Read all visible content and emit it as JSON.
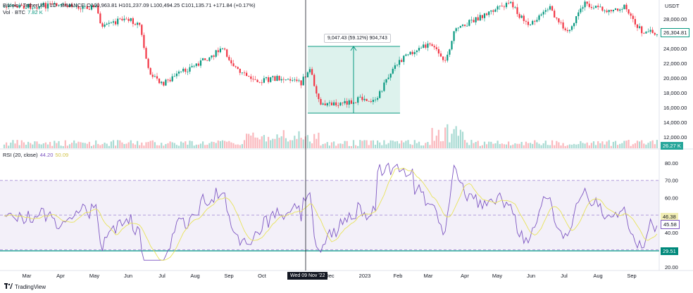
{
  "legend": {
    "symbol": "Bitcoin / TetherUS · 1D · BINANCE",
    "ohlc": "O100,963.81 H101,237.09 L100,494.25 C101,135.71 +171.84 (+0.17%)",
    "vol_label": "Vol · BTC",
    "vol_value": "7.82 K"
  },
  "rsi_legend": {
    "label": "RSI (20, close)",
    "value1": "44.20",
    "value2": "50.09"
  },
  "price_axis": {
    "currency": "USDT",
    "ticks": [
      "28,000.00",
      "26,000.00",
      "24,000.00",
      "22,000.00",
      "20,000.00",
      "18,000.00",
      "16,000.00",
      "14,000.00",
      "12,000.00"
    ],
    "current_price": "26,304.81",
    "volume_badge": "26.27 K"
  },
  "rsi_axis": {
    "ticks": [
      "80.00",
      "70.00",
      "60.00",
      "50.00",
      "40.00",
      "30.00",
      "20.00"
    ],
    "badge_ma": "46.38",
    "badge_rsi": "45.58",
    "badge_level": "29.51"
  },
  "time_axis": {
    "labels": [
      "Mar",
      "Apr",
      "May",
      "Jun",
      "Jul",
      "Aug",
      "Sep",
      "Oct",
      "Dec",
      "2023",
      "Feb",
      "Mar",
      "Apr",
      "May",
      "Jun",
      "Jul",
      "Aug",
      "Sep"
    ],
    "crosshair_date": "Wed 09 Nov '22"
  },
  "measure_tooltip": "9,047.43 (59.12%) 904,743",
  "brand": {
    "name": "TradingView"
  },
  "colors": {
    "up": "#089981",
    "down": "#f23645",
    "rsi_line": "#7e57c2",
    "rsi_ma": "#e8e35a",
    "range_fill": "#d4efe8",
    "range_stroke": "#089981",
    "hline": "#26a69a"
  }
}
